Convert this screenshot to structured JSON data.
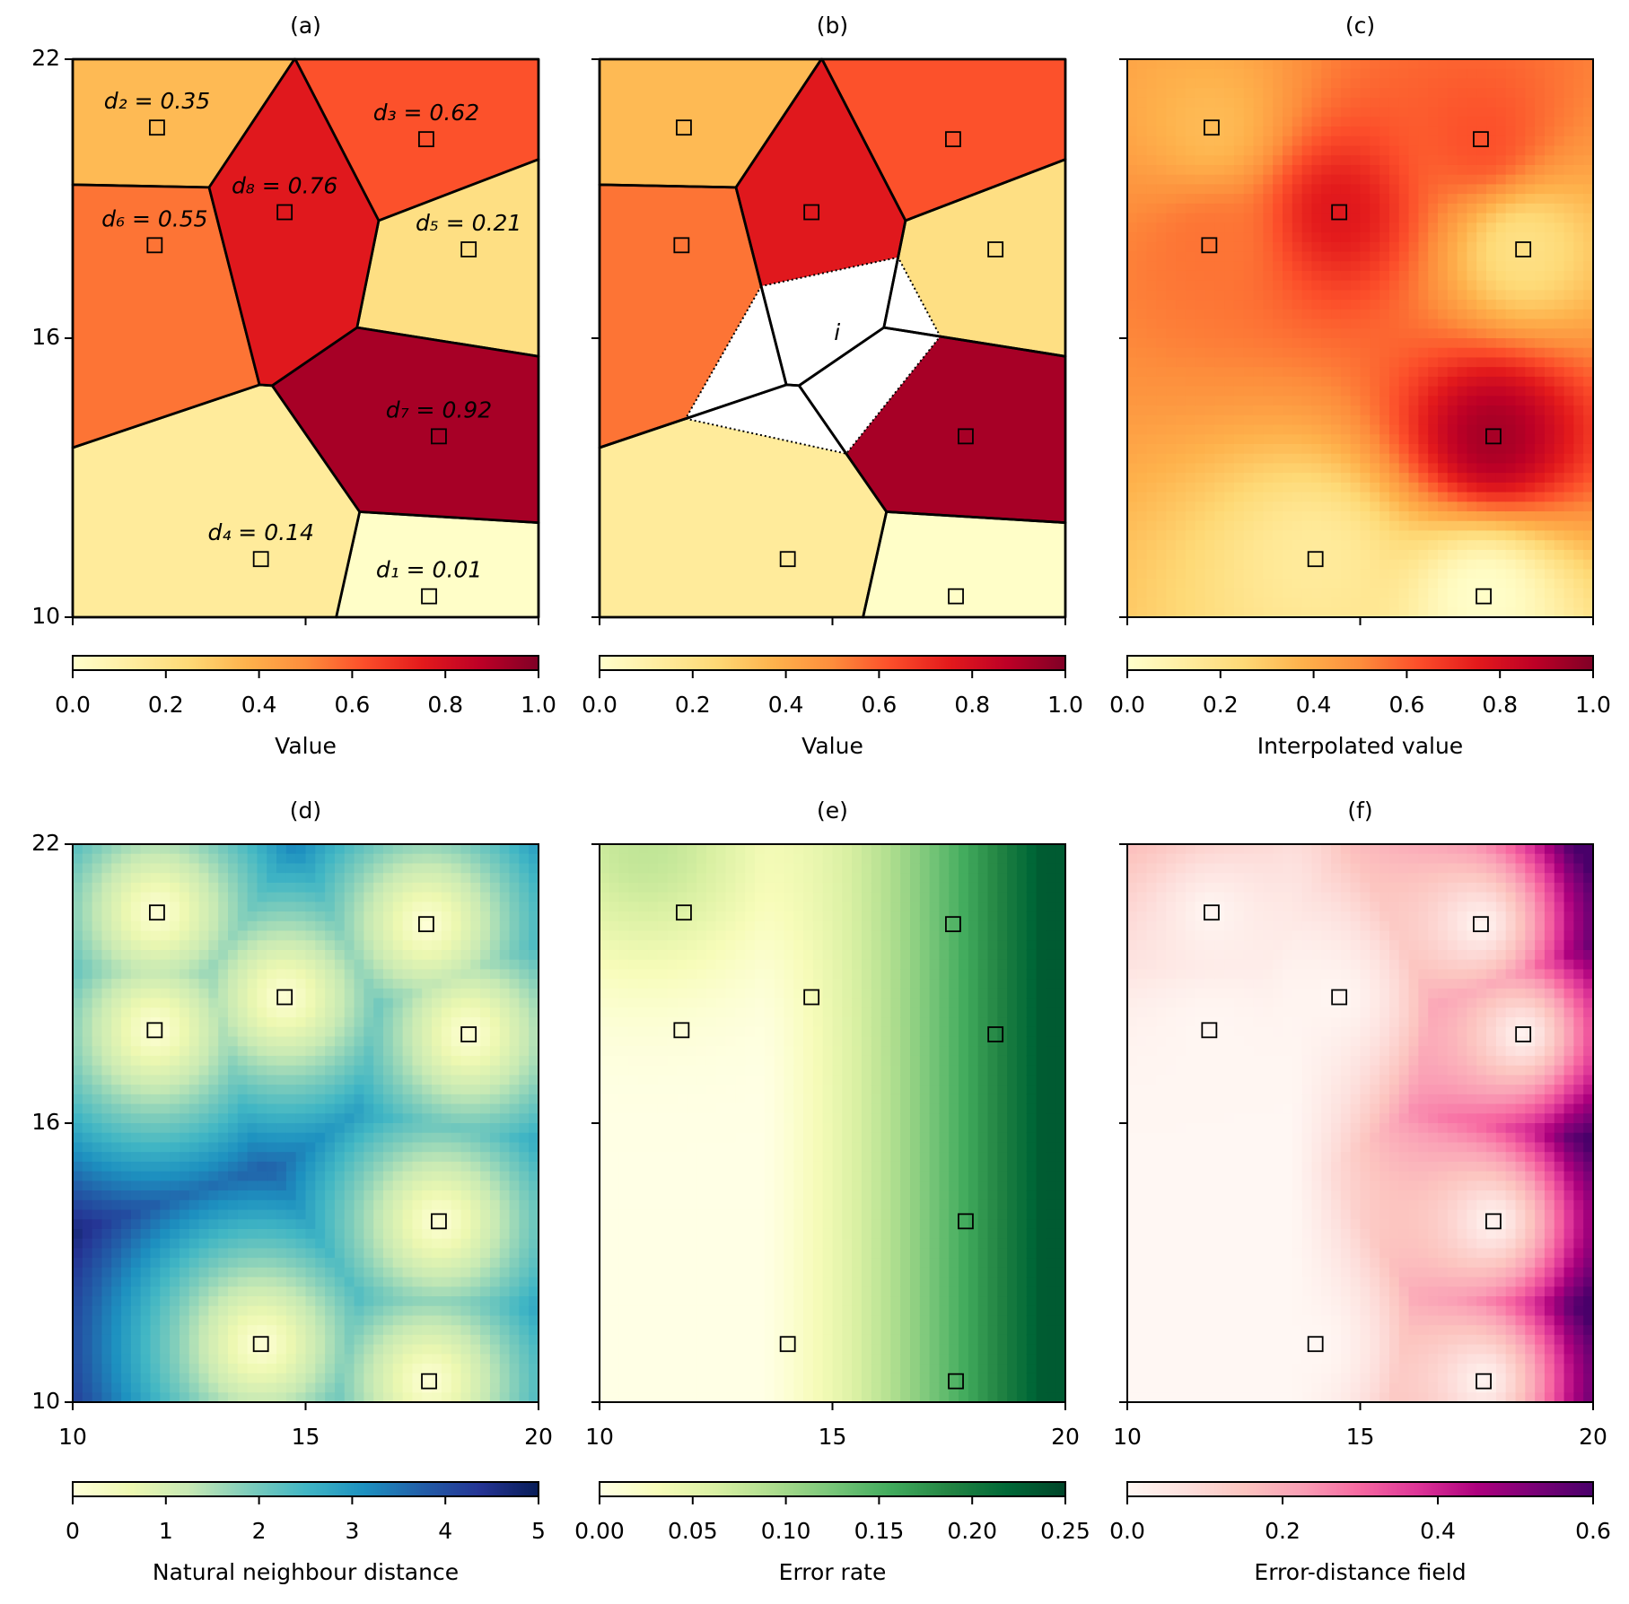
{
  "points": {
    "x": [
      17.65,
      11.81,
      17.59,
      14.04,
      18.5,
      11.76,
      17.86,
      14.55
    ],
    "y": [
      10.45,
      20.53,
      20.28,
      11.25,
      17.91,
      18.0,
      13.89,
      18.71
    ],
    "values": [
      0.01,
      0.35,
      0.62,
      0.14,
      0.21,
      0.55,
      0.92,
      0.76
    ],
    "value_labels": [
      "d₁ = 0.01",
      "d₂ = 0.35",
      "d₃ = 0.62",
      "d₄ = 0.14",
      "d₅ = 0.21",
      "d₆ = 0.55",
      "d₇ = 0.92",
      "d₈ = 0.76"
    ]
  },
  "new_point": {
    "x": 15.1,
    "y": 16.1,
    "label": "i"
  },
  "chart_data": [
    {
      "type": "voronoi",
      "title": "(a)",
      "xlim": [
        10,
        20
      ],
      "ylim": [
        10,
        22
      ],
      "xticks": [
        10,
        15,
        20
      ],
      "yticks": [
        10,
        16,
        22
      ],
      "xtick_labels": false,
      "ytick_labels": true,
      "colorbar": {
        "label": "Value",
        "lim": [
          0,
          1
        ],
        "ticks": [
          {
            "value": 0,
            "label": "0.0"
          },
          0.2,
          0.4,
          0.6,
          0.8,
          {
            "value": 1,
            "label": "1.0"
          }
        ],
        "colormap": [
          "#ffffcc",
          "#ffeda0",
          "#fed976",
          "#feb24c",
          "#fd8d3c",
          "#fc4e2a",
          "#e31a1c",
          "#bd0026",
          "#800026"
        ]
      }
    },
    {
      "type": "natural-neighbour",
      "title": "(b)",
      "xlim": [
        10,
        20
      ],
      "ylim": [
        10,
        22
      ],
      "xticks": [
        10,
        15,
        20
      ],
      "yticks": [
        10,
        16,
        22
      ],
      "xtick_labels": false,
      "ytick_labels": false,
      "colorbar": {
        "label": "Value",
        "lim": [
          0,
          1
        ],
        "ticks": [
          {
            "value": 0,
            "label": "0.0"
          },
          0.2,
          0.4,
          0.6,
          0.8,
          {
            "value": 1,
            "label": "1.0"
          }
        ],
        "colormap": [
          "#ffffcc",
          "#ffeda0",
          "#fed976",
          "#feb24c",
          "#fd8d3c",
          "#fc4e2a",
          "#e31a1c",
          "#bd0026",
          "#800026"
        ]
      }
    },
    {
      "type": "field",
      "field": "interpolated",
      "title": "(c)",
      "xlim": [
        10,
        20
      ],
      "ylim": [
        10,
        22
      ],
      "xticks": [
        10,
        15,
        20
      ],
      "yticks": [
        10,
        16,
        22
      ],
      "xtick_labels": false,
      "ytick_labels": false,
      "colorbar": {
        "label": "Interpolated value",
        "lim": [
          0,
          1
        ],
        "ticks": [
          {
            "value": 0,
            "label": "0.0"
          },
          0.2,
          0.4,
          0.6,
          0.8,
          {
            "value": 1,
            "label": "1.0"
          }
        ],
        "colormap": [
          "#ffffcc",
          "#ffeda0",
          "#fed976",
          "#feb24c",
          "#fd8d3c",
          "#fc4e2a",
          "#e31a1c",
          "#bd0026",
          "#800026"
        ]
      }
    },
    {
      "type": "field",
      "field": "distance",
      "title": "(d)",
      "xlim": [
        10,
        20
      ],
      "ylim": [
        10,
        22
      ],
      "xticks": [
        10,
        15,
        20
      ],
      "yticks": [
        10,
        16,
        22
      ],
      "xtick_labels": true,
      "ytick_labels": true,
      "colorbar": {
        "label": "Natural neighbour distance",
        "lim": [
          0,
          5
        ],
        "ticks": [
          0,
          1,
          2,
          3,
          4,
          5
        ],
        "colormap": [
          "#ffffd9",
          "#edf8b1",
          "#c7e9b4",
          "#7fcdbb",
          "#41b6c4",
          "#1d91c0",
          "#225ea8",
          "#253494",
          "#081d58"
        ]
      }
    },
    {
      "type": "field",
      "field": "error-rate",
      "title": "(e)",
      "xlim": [
        10,
        20
      ],
      "ylim": [
        10,
        22
      ],
      "xticks": [
        10,
        15,
        20
      ],
      "yticks": [
        10,
        16,
        22
      ],
      "xtick_labels": true,
      "ytick_labels": false,
      "colorbar": {
        "label": "Error rate",
        "lim": [
          0,
          0.25
        ],
        "ticks": [
          {
            "value": 0,
            "label": "0.00"
          },
          0.05,
          {
            "value": 0.1,
            "label": "0.10"
          },
          0.15,
          {
            "value": 0.2,
            "label": "0.20"
          },
          0.25
        ],
        "colormap": [
          "#ffffe5",
          "#f7fcb9",
          "#d9f0a3",
          "#addd8e",
          "#78c679",
          "#41ab5d",
          "#238443",
          "#006837",
          "#004529"
        ]
      }
    },
    {
      "type": "field",
      "field": "error-distance",
      "title": "(f)",
      "xlim": [
        10,
        20
      ],
      "ylim": [
        10,
        22
      ],
      "xticks": [
        10,
        15,
        20
      ],
      "yticks": [
        10,
        16,
        22
      ],
      "xtick_labels": true,
      "ytick_labels": false,
      "colorbar": {
        "label": "Error-distance field",
        "lim": [
          0,
          0.6
        ],
        "ticks": [
          {
            "value": 0,
            "label": "0.0"
          },
          0.2,
          0.4,
          0.6
        ],
        "colormap": [
          "#fff7f3",
          "#fde0dd",
          "#fcc5c0",
          "#fa9fb5",
          "#f768a1",
          "#dd3497",
          "#ae017e",
          "#7a0177",
          "#49006a"
        ]
      }
    }
  ]
}
